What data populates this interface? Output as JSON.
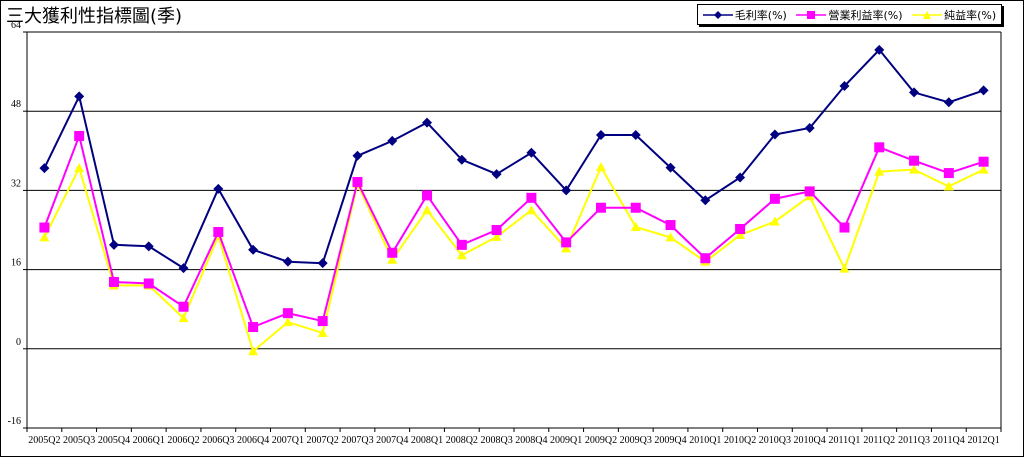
{
  "title": "三大獲利性指標圖(季)",
  "chart_data": {
    "type": "line",
    "title": "三大獲利性指標圖(季)",
    "xlabel": "",
    "ylabel": "",
    "ylim": [
      -16,
      64
    ],
    "yticks": [
      64,
      48,
      32,
      16,
      0,
      -16
    ],
    "grid": "horizontal",
    "legend": "top-right",
    "x": [
      "2005Q2",
      "2005Q3",
      "2005Q4",
      "2006Q1",
      "2006Q2",
      "2006Q3",
      "2006Q4",
      "2007Q1",
      "2007Q2",
      "2007Q3",
      "2007Q4",
      "2008Q1",
      "2008Q2",
      "2008Q3",
      "2008Q4",
      "2009Q1",
      "2009Q2",
      "2009Q3",
      "2009Q4",
      "2010Q1",
      "2010Q2",
      "2010Q3",
      "2010Q4",
      "2011Q1",
      "2011Q2",
      "2011Q3",
      "2011Q4",
      "2012Q1"
    ],
    "series": [
      {
        "name": "毛利率(%)",
        "color": "#000080",
        "marker": "diamond",
        "values": [
          36.5,
          51,
          21,
          20.7,
          16.3,
          32.3,
          20,
          17.6,
          17.3,
          39,
          42,
          45.7,
          38.2,
          35.3,
          39.6,
          32,
          43.2,
          43.2,
          36.6,
          30,
          34.6,
          43.3,
          44.6,
          53.1,
          60.4,
          51.8,
          49.8,
          52.2
        ]
      },
      {
        "name": "營業利益率(%)",
        "color": "#ff00ff",
        "marker": "square",
        "values": [
          24.5,
          43,
          13.5,
          13.2,
          8.5,
          23.6,
          4.4,
          7.2,
          5.6,
          33.7,
          19.4,
          31,
          21,
          24,
          30.5,
          21.5,
          28.5,
          28.5,
          25,
          18.3,
          24.2,
          30.3,
          31.8,
          24.5,
          40.7,
          38,
          35.5,
          37.8
        ]
      },
      {
        "name": "純益率(%)",
        "color": "#ffff00",
        "marker": "triangle",
        "values": [
          22.5,
          36.5,
          12.8,
          12.8,
          6.2,
          22.8,
          -0.5,
          5.4,
          3.2,
          33.3,
          18,
          28,
          18.9,
          22.6,
          28,
          20.3,
          36.7,
          24.6,
          22.5,
          17.6,
          23,
          25.7,
          30.8,
          16.2,
          35.8,
          36.2,
          32.8,
          36.2
        ]
      }
    ]
  }
}
